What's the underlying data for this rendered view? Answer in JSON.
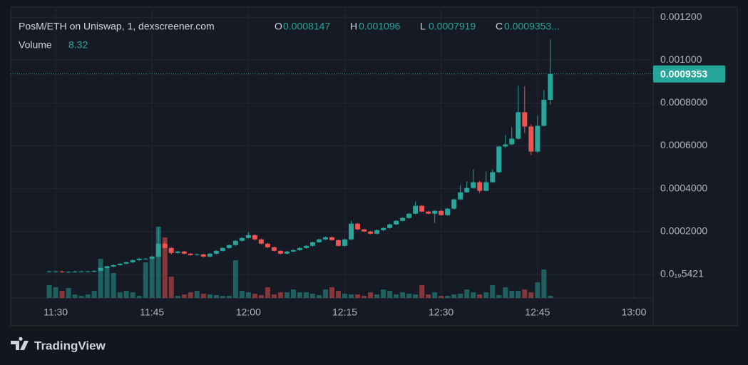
{
  "chart_data": {
    "type": "candlestick",
    "title": "PosM/ETH on Uniswap, 1, dexscreener.com",
    "ohlc_labels": [
      "O",
      "H",
      "L",
      "C"
    ],
    "close_label": "0.0009353...",
    "volume_label": "Volume",
    "branding": "TradingView",
    "up_color": "#26a69a",
    "down_color": "#ef5350",
    "grid": true,
    "x": [
      "11:29",
      "11:30",
      "11:31",
      "11:32",
      "11:33",
      "11:34",
      "11:35",
      "11:36",
      "11:37",
      "11:38",
      "11:39",
      "11:40",
      "11:41",
      "11:42",
      "11:43",
      "11:44",
      "11:45",
      "11:46",
      "11:47",
      "11:48",
      "11:49",
      "11:50",
      "11:51",
      "11:52",
      "11:53",
      "11:54",
      "11:55",
      "11:56",
      "11:57",
      "11:58",
      "11:59",
      "12:00",
      "12:01",
      "12:02",
      "12:03",
      "12:04",
      "12:05",
      "12:06",
      "12:07",
      "12:08",
      "12:09",
      "12:10",
      "12:11",
      "12:12",
      "12:13",
      "12:14",
      "12:15",
      "12:16",
      "12:17",
      "12:18",
      "12:19",
      "12:20",
      "12:21",
      "12:22",
      "12:23",
      "12:24",
      "12:25",
      "12:26",
      "12:27",
      "12:28",
      "12:29",
      "12:30",
      "12:31",
      "12:32",
      "12:33",
      "12:34",
      "12:35",
      "12:36",
      "12:37",
      "12:38",
      "12:39",
      "12:40",
      "12:41",
      "12:42",
      "12:43",
      "12:44",
      "12:45",
      "12:46",
      "12:47"
    ],
    "open": [
      1.33e-05,
      1.33e-05,
      1.33e-05,
      1.17e-05,
      1.17e-05,
      1.33e-05,
      1.33e-05,
      1.33e-05,
      1.67e-05,
      3e-05,
      3.67e-05,
      4.33e-05,
      5e-05,
      5.67e-05,
      6.67e-05,
      7.33e-05,
      7.33e-05,
      8.33e-05,
      0.0001433,
      0.0001233,
      0.0001,
      0.0001067,
      9.67e-05,
      9e-05,
      9.33e-05,
      8.33e-05,
      9.67e-05,
      0.00011,
      0.0001233,
      0.0001367,
      0.0001567,
      0.00017,
      0.0001833,
      0.0001633,
      0.0001433,
      0.0001267,
      0.00011,
      9.67e-05,
      0.0001067,
      0.0001133,
      0.0001233,
      0.0001333,
      0.00015,
      0.0001633,
      0.0001733,
      0.00016,
      0.0001333,
      0.0001633,
      0.0002367,
      0.00021,
      0.0002,
      0.00019,
      0.0002067,
      0.0002167,
      0.0002333,
      0.00025,
      0.0002633,
      0.0002833,
      0.00032,
      0.0002933,
      0.0002833,
      0.0002967,
      0.0002767,
      0.0003067,
      0.00035,
      0.0003833,
      0.0004033,
      0.00043,
      0.00039,
      0.00043,
      0.0004767,
      0.0005967,
      0.0006067,
      0.0006333,
      0.0007567,
      0.00069,
      0.0005733,
      0.0006933,
      0.0008147
    ],
    "high": [
      1.7e-05,
      1.7e-05,
      1.7e-05,
      1.5e-05,
      1.7e-05,
      1.7e-05,
      1.7e-05,
      2e-05,
      3.3e-05,
      4e-05,
      4.7e-05,
      5.3e-05,
      6e-05,
      7e-05,
      7.7e-05,
      7.7e-05,
      8.7e-05,
      0.000223,
      0.000153,
      0.000127,
      0.00011,
      0.00011,
      0.0001,
      9.7e-05,
      9.7e-05,
      0.0001,
      0.000113,
      0.000127,
      0.00014,
      0.00016,
      0.000173,
      0.000197,
      0.000187,
      0.000167,
      0.000147,
      0.00013,
      0.000113,
      0.00011,
      0.000117,
      0.000127,
      0.000137,
      0.000153,
      0.000167,
      0.000177,
      0.000177,
      0.000163,
      0.000167,
      0.00025,
      0.00024,
      0.000213,
      0.000203,
      0.00021,
      0.00022,
      0.000237,
      0.000253,
      0.000267,
      0.000287,
      0.00034,
      0.000323,
      0.000297,
      0.0003,
      0.0003,
      0.00031,
      0.000353,
      0.000417,
      0.000433,
      0.00049,
      0.000437,
      0.00048,
      0.00049,
      0.0006,
      0.00065,
      0.000687,
      0.00088,
      0.000877,
      0.0007,
      0.00074,
      0.00086,
      0.001096
    ],
    "low": [
      1e-05,
      1e-05,
      8e-06,
      8e-06,
      8e-06,
      1e-05,
      1e-05,
      1e-05,
      1.3e-05,
      2.7e-05,
      3.3e-05,
      4e-05,
      4.7e-05,
      5.3e-05,
      6.3e-05,
      7e-05,
      7e-05,
      8e-05,
      0.00012,
      9.3e-05,
      9.7e-05,
      9.3e-05,
      8.7e-05,
      8.7e-05,
      8e-05,
      8e-05,
      9.3e-05,
      0.000107,
      0.00012,
      0.000133,
      0.000153,
      0.000167,
      0.00016,
      0.00014,
      0.000123,
      0.000107,
      9.3e-05,
      9.3e-05,
      0.000103,
      0.00011,
      0.00012,
      0.00013,
      0.000147,
      0.00016,
      0.000157,
      0.00013,
      0.00013,
      0.00016,
      0.000207,
      0.000197,
      0.000187,
      0.000187,
      0.000203,
      0.000213,
      0.00023,
      0.000247,
      0.00026,
      0.00028,
      0.00029,
      0.00028,
      0.00024,
      0.000273,
      0.000273,
      0.000303,
      0.000347,
      0.00038,
      0.0004,
      0.00038,
      0.000387,
      0.000427,
      0.000473,
      0.00059,
      0.000603,
      0.00063,
      0.00066,
      0.000557,
      0.000567,
      0.00069,
      0.0007919
    ],
    "close": [
      1.33e-05,
      1.33e-05,
      1.17e-05,
      1.17e-05,
      1.33e-05,
      1.33e-05,
      1.33e-05,
      1.67e-05,
      3e-05,
      3.67e-05,
      4.33e-05,
      5e-05,
      5.67e-05,
      6.67e-05,
      7.33e-05,
      7.33e-05,
      8.33e-05,
      0.0001433,
      0.0001233,
      0.0001,
      0.0001067,
      9.67e-05,
      9e-05,
      9.33e-05,
      8.33e-05,
      9.67e-05,
      0.00011,
      0.0001233,
      0.0001367,
      0.0001567,
      0.00017,
      0.0001833,
      0.0001633,
      0.0001433,
      0.0001267,
      0.00011,
      9.67e-05,
      0.0001067,
      0.0001133,
      0.0001233,
      0.0001333,
      0.00015,
      0.0001633,
      0.0001733,
      0.00016,
      0.0001333,
      0.0001633,
      0.0002367,
      0.00021,
      0.0002,
      0.00019,
      0.0002067,
      0.0002167,
      0.0002333,
      0.00025,
      0.0002633,
      0.0002833,
      0.00032,
      0.0002933,
      0.0002833,
      0.0002967,
      0.0002767,
      0.0003067,
      0.00035,
      0.0003833,
      0.0004033,
      0.00043,
      0.00039,
      0.00043,
      0.0004767,
      0.0005967,
      0.0006067,
      0.0006333,
      0.0007567,
      0.00069,
      0.0005733,
      0.0006933,
      0.0008147,
      0.0009353
    ],
    "volume": [
      49.9,
      41.6,
      27.7,
      38.8,
      13.9,
      8.3,
      13.9,
      27.7,
      152.4,
      124.7,
      97,
      22.2,
      27.7,
      22.2,
      8.3,
      138.5,
      152.4,
      277,
      235.5,
      83.1,
      8.3,
      13.9,
      22.2,
      27.7,
      16.6,
      13.9,
      11.1,
      8.3,
      8.3,
      146.8,
      27.7,
      22.2,
      16.6,
      11.1,
      41.6,
      13.9,
      22.2,
      22.2,
      33.2,
      22.2,
      22.2,
      16.6,
      11.1,
      33.2,
      41.6,
      27.7,
      16.6,
      13.9,
      13.9,
      8.3,
      22.2,
      13.9,
      33.2,
      27.7,
      13.9,
      22.2,
      16.6,
      13.9,
      49.9,
      13.9,
      22.2,
      8.3,
      8.3,
      13.9,
      16.6,
      33.2,
      22.2,
      13.9,
      22.2,
      49.9,
      11.1,
      41.6,
      27.7,
      27.7,
      33.2,
      22.2,
      60.9,
      110.8,
      8.32
    ],
    "xlim": [
      "11:23",
      "13:03"
    ],
    "xticks": [
      "11:30",
      "11:45",
      "12:00",
      "12:15",
      "12:30",
      "12:45",
      "13:00"
    ],
    "ylim": [
      -0.00011,
      0.001247
    ],
    "yticks": [
      {
        "value": 5.421e-20,
        "label": "0.0₁₉5421"
      },
      {
        "value": 0.0002,
        "label": "0.0002000"
      },
      {
        "value": 0.0004,
        "label": "0.0004000"
      },
      {
        "value": 0.0006,
        "label": "0.0006000"
      },
      {
        "value": 0.0008,
        "label": "0.0008000"
      },
      {
        "value": 0.001,
        "label": "0.001000"
      },
      {
        "value": 0.0012,
        "label": "0.001200"
      }
    ]
  }
}
